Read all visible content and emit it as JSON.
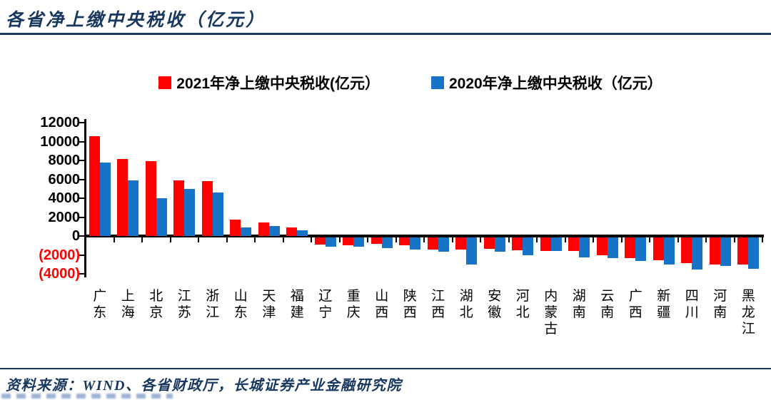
{
  "header": {
    "title": "各省净上缴中央税收（亿元）"
  },
  "footer": {
    "source": "资料来源：WIND、各省财政厅，长城证券产业金融研究院"
  },
  "colors": {
    "accent": "#17375E",
    "series_2021": "#FF0000",
    "series_2020": "#1673C5",
    "negative_tick": "#FF0000",
    "axis": "#000000"
  },
  "chart_data": {
    "type": "bar",
    "title": "各省净上缴中央税收（亿元）",
    "categories": [
      "广东",
      "上海",
      "北京",
      "江苏",
      "浙江",
      "山东",
      "天津",
      "福建",
      "辽宁",
      "重庆",
      "山西",
      "陕西",
      "江西",
      "湖北",
      "安徽",
      "河北",
      "内蒙古",
      "湖南",
      "云南",
      "广西",
      "新疆",
      "四川",
      "河南",
      "黑龙江"
    ],
    "series": [
      {
        "name": "2021年净上缴中央税收(亿元）",
        "color": "#FF0000",
        "values": [
          10600,
          8150,
          7950,
          5850,
          5800,
          1750,
          1400,
          900,
          -900,
          -950,
          -850,
          -950,
          -1450,
          -1400,
          -1350,
          -1500,
          -1600,
          -1600,
          -2050,
          -2350,
          -2550,
          -2900,
          -3000,
          -3050
        ]
      },
      {
        "name": "2020年净上缴中央税收（亿元）",
        "color": "#1673C5",
        "values": [
          7750,
          5850,
          4000,
          5000,
          4600,
          900,
          1050,
          600,
          -1150,
          -1100,
          -1300,
          -1450,
          -1650,
          -3050,
          -1650,
          -2000,
          -1600,
          -2250,
          -2350,
          -2650,
          -3000,
          -3550,
          -3200,
          -3500
        ]
      }
    ],
    "ylim": [
      -4000,
      12000
    ],
    "yticks": [
      {
        "label": "12000",
        "value": 12000,
        "negative": false
      },
      {
        "label": "10000",
        "value": 10000,
        "negative": false
      },
      {
        "label": "8000",
        "value": 8000,
        "negative": false
      },
      {
        "label": "6000",
        "value": 6000,
        "negative": false
      },
      {
        "label": "4000",
        "value": 4000,
        "negative": false
      },
      {
        "label": "2000",
        "value": 2000,
        "negative": false
      },
      {
        "label": "0",
        "value": 0,
        "negative": false
      },
      {
        "label": "(2000)",
        "value": -2000,
        "negative": true
      },
      {
        "label": "(4000)",
        "value": -4000,
        "negative": true
      }
    ],
    "grid": false,
    "legend_position": "top-center",
    "xlabel": "",
    "ylabel": ""
  }
}
